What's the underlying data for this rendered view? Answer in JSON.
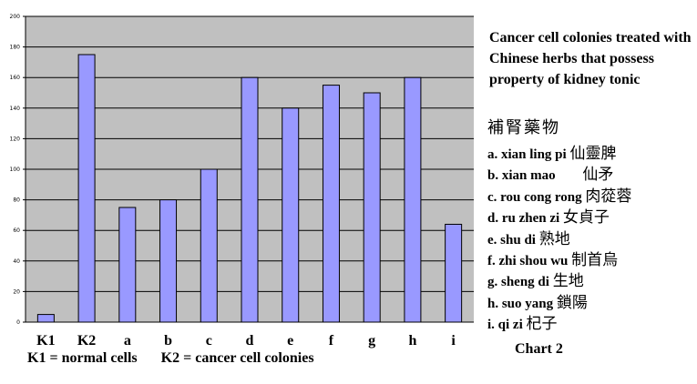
{
  "chart_data": {
    "type": "bar",
    "categories": [
      "K1",
      "K2",
      "a",
      "b",
      "c",
      "d",
      "e",
      "f",
      "g",
      "h",
      "i"
    ],
    "values": [
      5,
      175,
      75,
      80,
      100,
      160,
      140,
      155,
      150,
      160,
      64
    ],
    "yticks": [
      "0",
      "20",
      "40",
      "60",
      "80",
      "100",
      "120",
      "140",
      "160",
      "180",
      "200"
    ],
    "ylim": [
      0,
      200
    ],
    "grid": true,
    "colors": {
      "bar": "#9999ff",
      "plot_bg": "#c0c0c0",
      "grid": "#000000"
    }
  },
  "title": "Cancer cell colonies treated with Chinese herbs that possess property of kidney tonic",
  "herb_heading": "補腎藥物",
  "herbs": [
    {
      "letter": "a.",
      "pinyin": "xian ling pi",
      "chinese": "仙靈脾"
    },
    {
      "letter": "b.",
      "pinyin": "xian mao",
      "chinese": "仙矛"
    },
    {
      "letter": "c.",
      "pinyin": "rou cong rong",
      "chinese": "肉蓯蓉"
    },
    {
      "letter": "d.",
      "pinyin": "ru zhen zi",
      "chinese": "女貞子"
    },
    {
      "letter": "e.",
      "pinyin": "shu di",
      "chinese": "熟地"
    },
    {
      "letter": "f.",
      "pinyin": "zhi shou wu",
      "chinese": "制首烏"
    },
    {
      "letter": "g.",
      "pinyin": "sheng di",
      "chinese": "生地"
    },
    {
      "letter": "h.",
      "pinyin": "suo yang",
      "chinese": "鎖陽"
    },
    {
      "letter": "i.",
      "pinyin": "qi zi",
      "chinese": "杞子"
    }
  ],
  "chart_label": "Chart 2",
  "footnote": {
    "k1": "K1 = normal cells",
    "k2": "K2 = cancer cell colonies"
  }
}
